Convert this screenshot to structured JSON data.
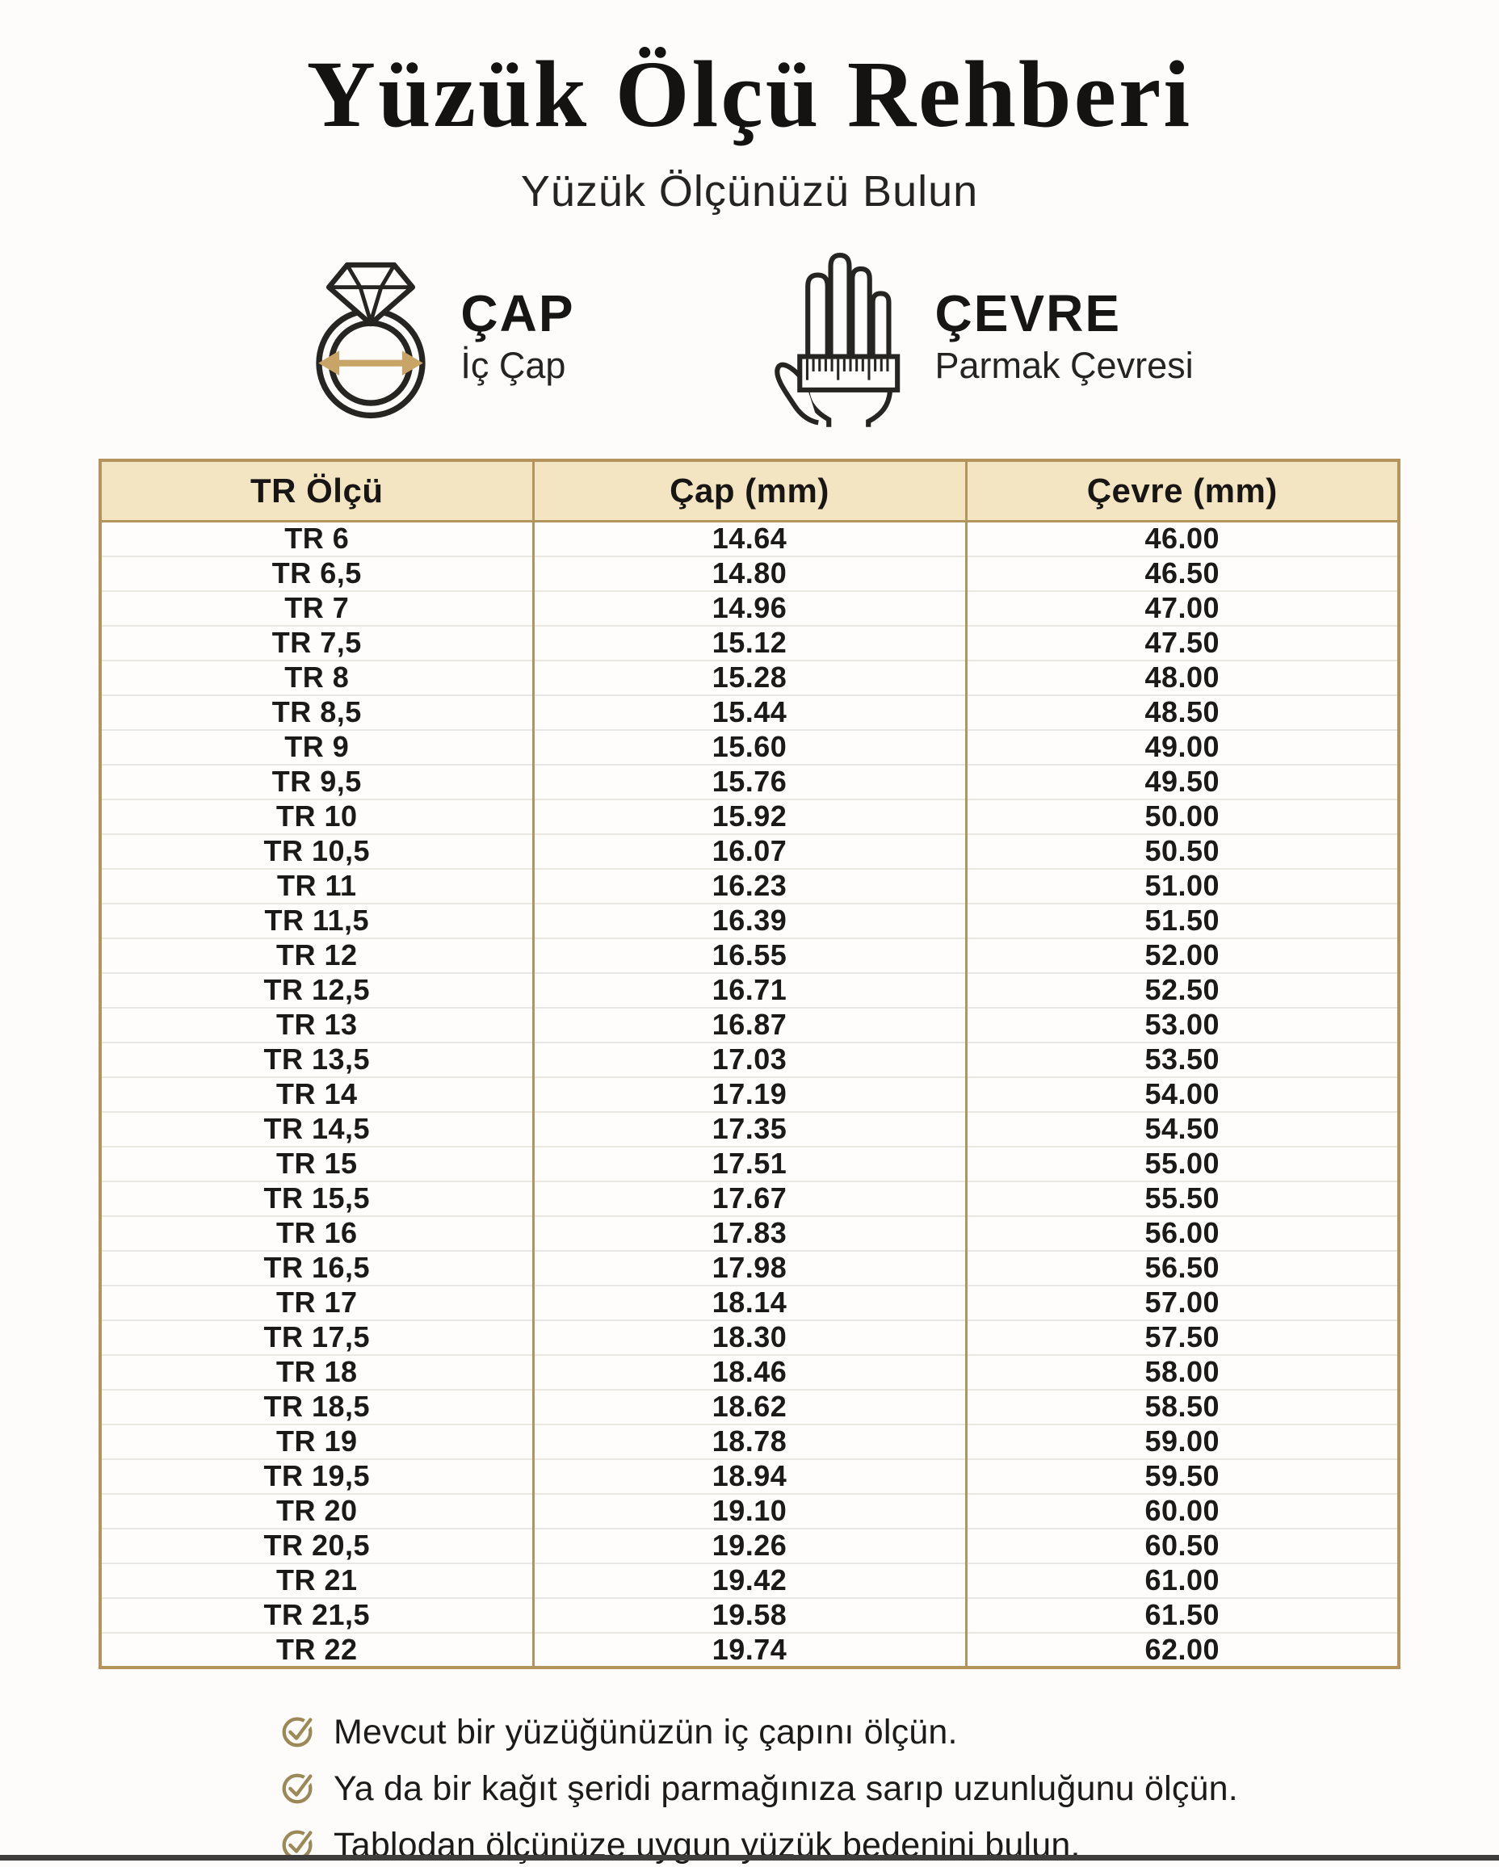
{
  "page": {
    "title": "Yüzük Ölçü Rehberi",
    "subtitle": "Yüzük Ölçünüzü Bulun"
  },
  "legend": {
    "diameter": {
      "label": "ÇAP",
      "sublabel": "İç Çap",
      "icon": "ring-diameter-icon"
    },
    "circumference": {
      "label": "ÇEVRE",
      "sublabel": "Parmak Çevresi",
      "icon": "hand-ruler-icon"
    }
  },
  "colors": {
    "table_border_gold": "#b2945c",
    "header_background": "#f3e5c1",
    "arrow_gold": "#c8a566",
    "check_gold": "#9b8a58",
    "text_dark": "#1b1a18"
  },
  "table": {
    "headers": [
      "TR Ölçü",
      "Çap (mm)",
      "Çevre (mm)"
    ],
    "rows": [
      {
        "size": "TR 6",
        "diameter": "14.64",
        "circumference": "46.00"
      },
      {
        "size": "TR 6,5",
        "diameter": "14.80",
        "circumference": "46.50"
      },
      {
        "size": "TR 7",
        "diameter": "14.96",
        "circumference": "47.00"
      },
      {
        "size": "TR 7,5",
        "diameter": "15.12",
        "circumference": "47.50"
      },
      {
        "size": "TR 8",
        "diameter": "15.28",
        "circumference": "48.00"
      },
      {
        "size": "TR 8,5",
        "diameter": "15.44",
        "circumference": "48.50"
      },
      {
        "size": "TR 9",
        "diameter": "15.60",
        "circumference": "49.00"
      },
      {
        "size": "TR 9,5",
        "diameter": "15.76",
        "circumference": "49.50"
      },
      {
        "size": "TR 10",
        "diameter": "15.92",
        "circumference": "50.00"
      },
      {
        "size": "TR 10,5",
        "diameter": "16.07",
        "circumference": "50.50"
      },
      {
        "size": "TR 11",
        "diameter": "16.23",
        "circumference": "51.00"
      },
      {
        "size": "TR 11,5",
        "diameter": "16.39",
        "circumference": "51.50"
      },
      {
        "size": "TR 12",
        "diameter": "16.55",
        "circumference": "52.00"
      },
      {
        "size": "TR 12,5",
        "diameter": "16.71",
        "circumference": "52.50"
      },
      {
        "size": "TR 13",
        "diameter": "16.87",
        "circumference": "53.00"
      },
      {
        "size": "TR 13,5",
        "diameter": "17.03",
        "circumference": "53.50"
      },
      {
        "size": "TR 14",
        "diameter": "17.19",
        "circumference": "54.00"
      },
      {
        "size": "TR 14,5",
        "diameter": "17.35",
        "circumference": "54.50"
      },
      {
        "size": "TR 15",
        "diameter": "17.51",
        "circumference": "55.00"
      },
      {
        "size": "TR 15,5",
        "diameter": "17.67",
        "circumference": "55.50"
      },
      {
        "size": "TR 16",
        "diameter": "17.83",
        "circumference": "56.00"
      },
      {
        "size": "TR 16,5",
        "diameter": "17.98",
        "circumference": "56.50"
      },
      {
        "size": "TR 17",
        "diameter": "18.14",
        "circumference": "57.00"
      },
      {
        "size": "TR 17,5",
        "diameter": "18.30",
        "circumference": "57.50"
      },
      {
        "size": "TR 18",
        "diameter": "18.46",
        "circumference": "58.00"
      },
      {
        "size": "TR 18,5",
        "diameter": "18.62",
        "circumference": "58.50"
      },
      {
        "size": "TR 19",
        "diameter": "18.78",
        "circumference": "59.00"
      },
      {
        "size": "TR 19,5",
        "diameter": "18.94",
        "circumference": "59.50"
      },
      {
        "size": "TR 20",
        "diameter": "19.10",
        "circumference": "60.00"
      },
      {
        "size": "TR 20,5",
        "diameter": "19.26",
        "circumference": "60.50"
      },
      {
        "size": "TR 21",
        "diameter": "19.42",
        "circumference": "61.00"
      },
      {
        "size": "TR 21,5",
        "diameter": "19.58",
        "circumference": "61.50"
      },
      {
        "size": "TR 22",
        "diameter": "19.74",
        "circumference": "62.00"
      }
    ]
  },
  "footer": {
    "notes": [
      "Mevcut bir yüzüğünüzün iç çapını ölçün.",
      "Ya da bir kağıt şeridi parmağınıza sarıp uzunluğunu ölçün.",
      "Tablodan ölçünüze uygun yüzük bedenini bulun."
    ]
  }
}
